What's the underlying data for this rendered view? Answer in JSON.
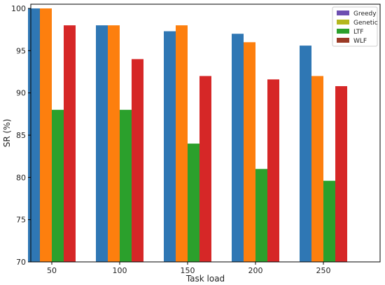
{
  "chart_data": {
    "type": "bar",
    "title": "",
    "xlabel": "Task load",
    "ylabel": "SR (%)",
    "categories": [
      "50",
      "100",
      "150",
      "200",
      "250"
    ],
    "ylim": [
      70,
      100.5
    ],
    "yticks": [
      70,
      75,
      80,
      85,
      90,
      95,
      100
    ],
    "grid": false,
    "legend_position": "top-right",
    "series": [
      {
        "name": "Greedy",
        "values": [
          100,
          98,
          97.3,
          97,
          95.6
        ],
        "color": "#2f77b4",
        "legend_color": "#6d4fb1"
      },
      {
        "name": "Genetic",
        "values": [
          100,
          98,
          98,
          96,
          92
        ],
        "color": "#fd7f0e",
        "legend_color": "#b4b71e"
      },
      {
        "name": "LTF",
        "values": [
          88,
          88,
          84,
          81,
          79.6
        ],
        "color": "#2ba02c",
        "legend_color": "#2ba02c"
      },
      {
        "name": "WLF",
        "values": [
          98,
          94,
          92,
          91.6,
          90.8
        ],
        "color": "#d62727",
        "legend_color": "#9b3a26"
      }
    ]
  }
}
